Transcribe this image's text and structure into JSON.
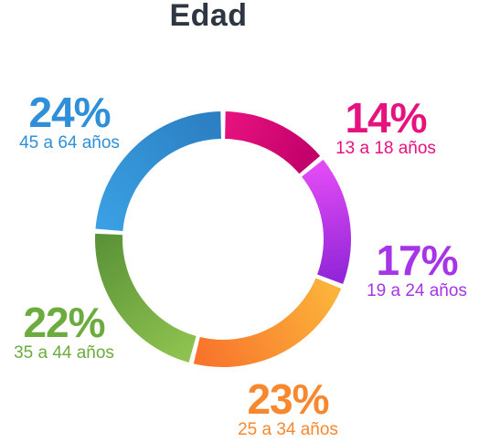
{
  "title": "Edad",
  "chart_data": {
    "type": "pie",
    "title": "Edad",
    "slices": [
      {
        "label": "13 a 18 años",
        "percent_label": "14%",
        "value": 14,
        "color": "#e6127e",
        "color_end": "#c2006a"
      },
      {
        "label": "19 a 24 años",
        "percent_label": "17%",
        "value": 17,
        "color": "#e14bf5",
        "color_end": "#9226d8"
      },
      {
        "label": "25 a 34 años",
        "percent_label": "23%",
        "value": 23,
        "color": "#fbb33a",
        "color_end": "#f8742c"
      },
      {
        "label": "35 a 44 años",
        "percent_label": "22%",
        "value": 22,
        "color": "#8ec24f",
        "color_end": "#5b9338"
      },
      {
        "label": "45 a 64 años",
        "percent_label": "24%",
        "value": 24,
        "color": "#3aa0e3",
        "color_end": "#2b7fc2"
      }
    ]
  }
}
